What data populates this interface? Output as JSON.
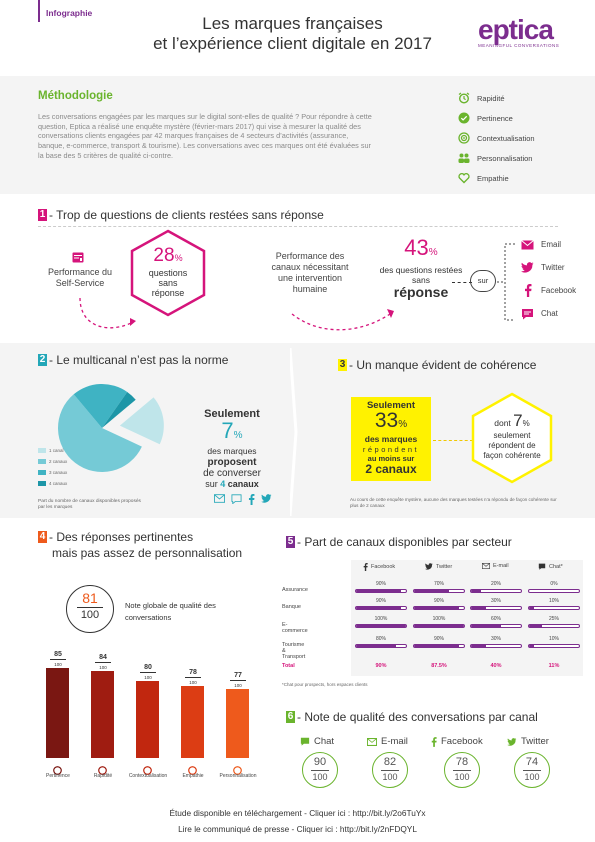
{
  "header": {
    "tag": "Infographie",
    "title_line1": "Les marques françaises",
    "title_line2": "et l’expérience client digitale en 2017",
    "logo_word": "eptica",
    "logo_sub": "MEANINGFUL CONVERSATIONS"
  },
  "methodology": {
    "title": "Méthodologie",
    "text": "Les conversations engagées par les marques sur le digital sont-elles de qualité ? Pour répondre à cette question, Eptica a réalisé une enquête mystère (février-mars 2017) qui vise à mesurer la qualité des conversations clients engagées par 42 marques françaises de 4 secteurs d’activités (assurance, banque, e-commerce, transport & tourisme). Les conversations avec ces marques ont été évaluées sur la base des 5 critères de qualité ci-contre.",
    "criteria": [
      {
        "label": "Rapidité",
        "icon": "alarm-clock-icon"
      },
      {
        "label": "Pertinence",
        "icon": "check-circle-icon"
      },
      {
        "label": "Contextualisation",
        "icon": "target-icon"
      },
      {
        "label": "Personnalisation",
        "icon": "people-icon"
      },
      {
        "label": "Empathie",
        "icon": "heart-icon"
      }
    ]
  },
  "s1": {
    "num": "1",
    "title": "- Trop de questions de clients restées sans réponse",
    "self_service": "Performance du Self-Service",
    "hex_value": "28",
    "hex_unit": "%",
    "hex_text": "questions sans réponse",
    "perf_channels": "Performance des canaux nécessitant une intervention humaine",
    "value": "43",
    "unit": "%",
    "text1": "des questions restées sans",
    "text2": "réponse",
    "sur": "sur",
    "channels": [
      {
        "label": "Email",
        "icon": "email-icon"
      },
      {
        "label": "Twitter",
        "icon": "twitter-icon"
      },
      {
        "label": "Facebook",
        "icon": "facebook-icon"
      },
      {
        "label": "Chat",
        "icon": "chat-icon"
      }
    ]
  },
  "s2": {
    "num": "2",
    "title": "- Le multicanal n’est pas la norme",
    "legend": [
      "1 canal",
      "2 canaux",
      "3 canaux",
      "4 canaux"
    ],
    "caption": "Part du nombre de canaux disponibles proposés par les marques",
    "seulement": "Seulement",
    "value": "7",
    "unit": "%",
    "text1": "des marques",
    "text2": "proposent",
    "text3": "de converser",
    "text4_pre": "sur",
    "text4_num": "4",
    "text4_post": "canaux"
  },
  "s3": {
    "num": "3",
    "title": "- Un manque évident de cohérence",
    "seulement": "Seulement",
    "value": "33",
    "unit": "%",
    "text1": "des marques",
    "text2": "répondent",
    "text3": "au moins sur",
    "text4": "2 canaux",
    "dont": "dont",
    "dont_value": "7",
    "dont_unit": "%",
    "dont_text1": "seulement",
    "dont_text2": "répondent de façon cohérente",
    "caption": "Au cours de cette enquête mystère, aucune des marques testées n’a répondu de façon cohérente sur plus de 2 canaux"
  },
  "s4": {
    "num": "4",
    "title1": "- Des réponses pertinentes",
    "title2": "mais pas assez de personnalisation",
    "global_value": "81",
    "global_den": "100",
    "global_text": "Note globale de qualité des conversations",
    "bars": [
      {
        "label": "Pertinence",
        "value": 85,
        "den": "100",
        "color": "#7a1712",
        "icon": "check-circle-icon"
      },
      {
        "label": "Rapidité",
        "value": 84,
        "den": "100",
        "color": "#9f1c11",
        "icon": "alarm-clock-icon"
      },
      {
        "label": "Contextualisation",
        "value": 80,
        "den": "100",
        "color": "#c1270f",
        "icon": "target-icon"
      },
      {
        "label": "Empathie",
        "value": 78,
        "den": "100",
        "color": "#dc3d14",
        "icon": "heart-icon"
      },
      {
        "label": "Personnalisation",
        "value": 77,
        "den": "100",
        "color": "#ee5a1c",
        "icon": "people-icon"
      }
    ]
  },
  "s5": {
    "num": "5",
    "title": "- Part de canaux disponibles par secteur",
    "columns": [
      {
        "label": "Facebook",
        "icon": "facebook-icon"
      },
      {
        "label": "Twitter",
        "icon": "twitter-icon"
      },
      {
        "label": "E-mail",
        "icon": "email-icon"
      },
      {
        "label": "Chat*",
        "icon": "chat-icon"
      }
    ],
    "rows": [
      {
        "label": "Assurance",
        "values": [
          90,
          70,
          20,
          0
        ]
      },
      {
        "label": "Banque",
        "values": [
          90,
          90,
          30,
          10
        ]
      },
      {
        "label": "E-commerce",
        "values": [
          100,
          100,
          60,
          25
        ]
      },
      {
        "label": "Tourisme & Transport",
        "values": [
          80,
          90,
          30,
          10
        ]
      }
    ],
    "total_label": "Total",
    "totals": [
      "90",
      "87.5",
      "40",
      "11"
    ],
    "pct_sign": "%",
    "note": "*Chat pour prospects, hors espaces clients"
  },
  "s6": {
    "num": "6",
    "title": "- Note de qualité des conversations par canal",
    "items": [
      {
        "label": "Chat",
        "value": "90",
        "den": "100",
        "icon": "chat-icon"
      },
      {
        "label": "E-mail",
        "value": "82",
        "den": "100",
        "icon": "email-icon"
      },
      {
        "label": "Facebook",
        "value": "78",
        "den": "100",
        "icon": "facebook-icon"
      },
      {
        "label": "Twitter",
        "value": "74",
        "den": "100",
        "icon": "twitter-icon"
      }
    ]
  },
  "footer": {
    "line1": "Étude disponible en téléchargement - Cliquer ici :  http://bit.ly/2o6TuYx",
    "line2": "Lire le communiqué de presse - Cliquer ici :  http://bit.ly/2nFDQYL"
  },
  "colors": {
    "magenta": "#d5147b",
    "teal": "#23a7b8",
    "green": "#6ab42d",
    "purple": "#7c2d8e",
    "yellow": "#fff200",
    "orange": "#ee5a1c"
  }
}
